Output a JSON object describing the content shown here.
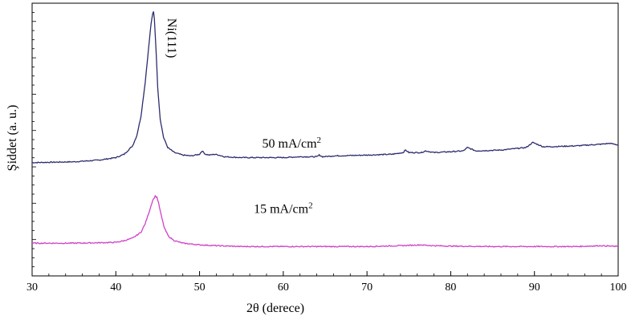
{
  "chart_data": {
    "type": "line",
    "xlabel": "2θ (derece)",
    "ylabel": "Şiddet (a. u.)",
    "xlim": [
      30,
      100
    ],
    "x_ticks": [
      "30",
      "40",
      "50",
      "60",
      "70",
      "80",
      "90",
      "100"
    ],
    "y_ticks_labeled": false,
    "grid": false,
    "legend": "none",
    "colors": {
      "50 mA/cm2": "#2b2d6e",
      "15 mA/cm2": "#d040c8",
      "axis": "#000000"
    },
    "annotations": [
      {
        "text": "Ni(111)",
        "x": 46.2,
        "y": 2.72,
        "rotation": 90
      },
      {
        "text_main": "50 mA/cm",
        "sup": "2",
        "x": 61.0,
        "y": 1.18
      },
      {
        "text_main": "15 mA/cm",
        "sup": "2",
        "x": 60.0,
        "y": 0.4
      }
    ],
    "series": [
      {
        "name": "50 mA/cm2",
        "offset": 1.0,
        "x": [
          30,
          35,
          38,
          40,
          41,
          42,
          42.5,
          43,
          43.5,
          44,
          44.2,
          44.4,
          44.5,
          44.6,
          44.8,
          45,
          45.3,
          45.7,
          46.2,
          47,
          48,
          49,
          50,
          50.3,
          50.7,
          51.2,
          51.8,
          52.3,
          53,
          55,
          58,
          60,
          62,
          64,
          64.3,
          64.7,
          66,
          70,
          73,
          74.3,
          74.6,
          75,
          76.5,
          77,
          78,
          80,
          81.5,
          82,
          83,
          86,
          89,
          89.8,
          90.3,
          91,
          92,
          95,
          98,
          99,
          100
        ],
        "y": [
          0.0,
          0.01,
          0.03,
          0.06,
          0.1,
          0.2,
          0.32,
          0.55,
          0.95,
          1.45,
          1.65,
          1.77,
          1.8,
          1.72,
          1.35,
          0.9,
          0.52,
          0.3,
          0.18,
          0.12,
          0.09,
          0.08,
          0.1,
          0.14,
          0.1,
          0.09,
          0.1,
          0.09,
          0.07,
          0.06,
          0.06,
          0.06,
          0.07,
          0.07,
          0.09,
          0.07,
          0.08,
          0.09,
          0.1,
          0.12,
          0.15,
          0.12,
          0.12,
          0.14,
          0.12,
          0.13,
          0.14,
          0.18,
          0.14,
          0.15,
          0.18,
          0.24,
          0.22,
          0.19,
          0.19,
          0.2,
          0.22,
          0.23,
          0.21
        ]
      },
      {
        "name": "15 mA/cm2",
        "offset": 0.0,
        "x": [
          30,
          35,
          38,
          40,
          41,
          42,
          43,
          43.5,
          44,
          44.4,
          44.7,
          44.9,
          45.1,
          45.4,
          45.8,
          46.3,
          47,
          48,
          49,
          50,
          52,
          55,
          60,
          65,
          70,
          74,
          76.5,
          77,
          78,
          80,
          85,
          90,
          95,
          98,
          99,
          100
        ],
        "y": [
          0.04,
          0.04,
          0.045,
          0.05,
          0.07,
          0.1,
          0.17,
          0.27,
          0.42,
          0.55,
          0.6,
          0.59,
          0.52,
          0.38,
          0.22,
          0.12,
          0.07,
          0.04,
          0.03,
          0.02,
          0.01,
          0.0,
          0.0,
          0.0,
          0.0,
          0.01,
          0.02,
          0.015,
          0.01,
          0.005,
          0.0,
          0.0,
          0.0,
          0.01,
          0.005,
          0.0
        ]
      }
    ]
  }
}
